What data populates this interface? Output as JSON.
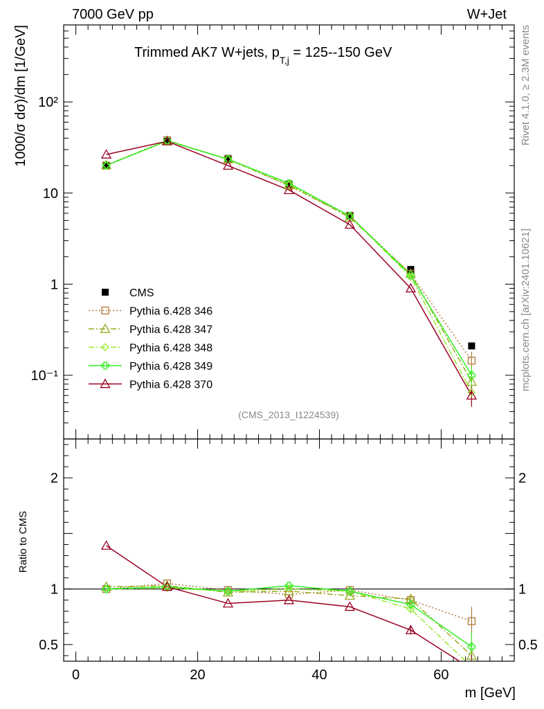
{
  "header": {
    "left": "7000 GeV pp",
    "right": "W+Jet",
    "title_main": "Trimmed AK7 W+jets, p",
    "title_sub": "T,j",
    "title_tail": " = 125--150 GeV"
  },
  "side": {
    "rivet": "Rivet 4.1.0, ≥ 2.3M events",
    "mcplots": "mcplots.cern.ch [arXiv:2401.10621]"
  },
  "analysis_id": "(CMS_2013_I1224539)",
  "chart_data": [
    {
      "type": "scatter",
      "panel": "main",
      "ylabel": "1000/σ  dσ)/dm [1/GeV]",
      "yscale": "log",
      "ylim": [
        0.02,
        700
      ],
      "xlim": [
        -2,
        72
      ],
      "y_tick_labels": [
        "10⁻¹",
        "1",
        "10",
        "10²"
      ],
      "x": [
        5,
        15,
        25,
        35,
        45,
        55,
        65
      ],
      "series": [
        {
          "name": "CMS",
          "color": "#000000",
          "marker": "filled-square",
          "style": "none",
          "values": [
            20.0,
            37.0,
            24.0,
            12.5,
            5.7,
            1.45,
            0.21
          ]
        },
        {
          "name": "Pythia 6.428 346",
          "color": "#b07a3a",
          "marker": "open-square",
          "style": "dotted",
          "values": [
            20.0,
            38.0,
            23.5,
            12.0,
            5.6,
            1.3,
            0.145
          ]
        },
        {
          "name": "Pythia 6.428 347",
          "color": "#9aaa22",
          "marker": "open-triangle",
          "style": "dashdot",
          "values": [
            20.3,
            37.5,
            23.4,
            12.2,
            5.4,
            1.3,
            0.085
          ]
        },
        {
          "name": "Pythia 6.428 348",
          "color": "#99e82a",
          "marker": "open-diamond",
          "style": "dashdot",
          "values": [
            20.1,
            37.2,
            23.6,
            12.4,
            5.6,
            1.2,
            0.065
          ]
        },
        {
          "name": "Pythia 6.428 349",
          "color": "#33ee22",
          "marker": "open-cross",
          "style": "solid",
          "values": [
            20.1,
            37.5,
            23.5,
            12.8,
            5.6,
            1.25,
            0.1
          ]
        },
        {
          "name": "Pythia 6.428 370",
          "color": "#990022",
          "marker": "open-triangle",
          "style": "solid",
          "values": [
            26.5,
            37.0,
            20.0,
            10.8,
            4.5,
            0.9,
            0.06
          ]
        }
      ]
    },
    {
      "type": "line",
      "panel": "ratio",
      "ylabel": "Ratio to CMS",
      "xlabel": "m [GeV]",
      "ylim": [
        0.35,
        2.35
      ],
      "xlim": [
        -2,
        72
      ],
      "y_tick_labels": [
        "0.5",
        "1",
        "2"
      ],
      "x_tick_labels": [
        "0",
        "20",
        "40",
        "60"
      ],
      "x": [
        5,
        15,
        25,
        35,
        45,
        55,
        65
      ],
      "series": [
        {
          "name": "Pythia 6.428 346",
          "values": [
            1.0,
            1.05,
            0.99,
            0.95,
            0.99,
            0.9,
            0.71
          ]
        },
        {
          "name": "Pythia 6.428 347",
          "values": [
            1.02,
            1.03,
            0.97,
            0.98,
            0.94,
            0.91,
            0.4
          ]
        },
        {
          "name": "Pythia 6.428 348",
          "values": [
            1.0,
            1.01,
            0.98,
            1.0,
            0.98,
            0.82,
            0.3
          ]
        },
        {
          "name": "Pythia 6.428 349",
          "values": [
            1.0,
            1.02,
            0.98,
            1.03,
            0.98,
            0.86,
            0.48
          ]
        },
        {
          "name": "Pythia 6.428 370",
          "values": [
            1.39,
            1.02,
            0.87,
            0.9,
            0.84,
            0.63,
            0.28
          ]
        }
      ]
    }
  ]
}
